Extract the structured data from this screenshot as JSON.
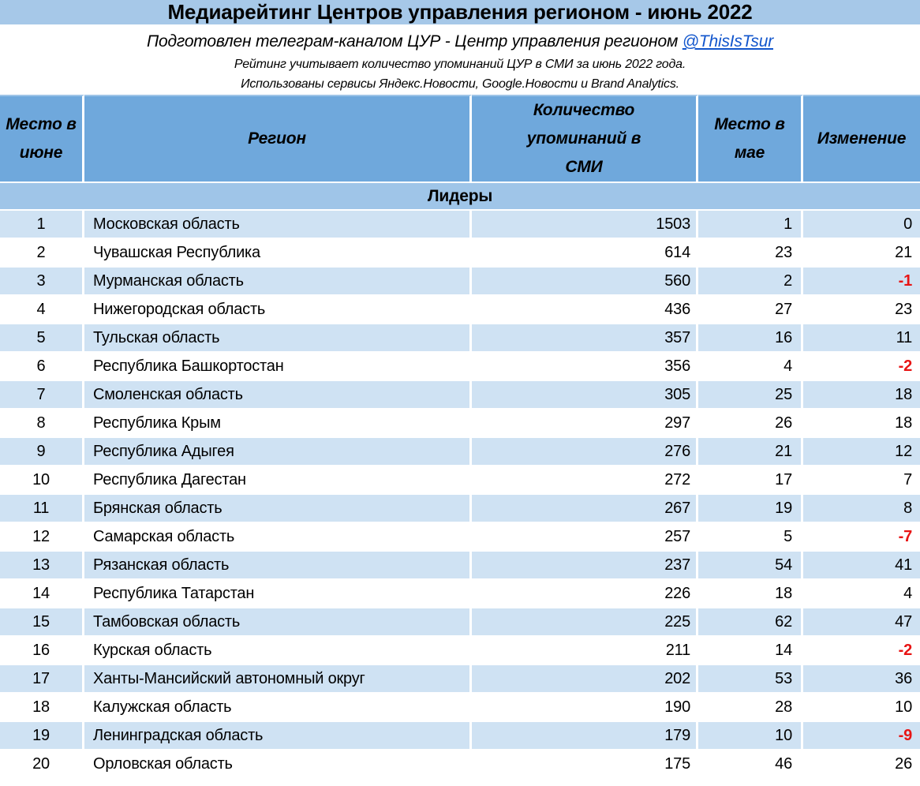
{
  "title": "Медиарейтинг Центров управления регионом - июнь 2022",
  "intro": {
    "prepared_by_prefix": "Подготовлен телеграм-каналом ЦУР - Центр управления регионом ",
    "prepared_by_link": "@ThisIsTsur",
    "note1": "Рейтинг учитывает количество упоминаний ЦУР в СМИ за июнь 2022 года.",
    "note2": "Использованы сервисы Яндекс.Новости, Google.Новости и Brand Analytics."
  },
  "colors": {
    "title_band": "#a6c8e8",
    "header_bg": "#6fa8dc",
    "section_bg": "#9fc5e8",
    "row_alt_bg": "#cfe2f3",
    "negative_red": "#e81414",
    "link_blue": "#1155cc"
  },
  "table": {
    "headers": [
      "Место в июне",
      "Регион",
      "Количество упоминаний в СМИ",
      "Место в мае",
      "Изменение"
    ],
    "section_label": "Лидеры",
    "rows": [
      {
        "place": "1",
        "region": "Московская область",
        "mentions": "1503",
        "may": "1",
        "change": "0"
      },
      {
        "place": "2",
        "region": "Чувашская Республика",
        "mentions": "614",
        "may": "23",
        "change": "21"
      },
      {
        "place": "3",
        "region": "Мурманская область",
        "mentions": "560",
        "may": "2",
        "change": "-1"
      },
      {
        "place": "4",
        "region": "Нижегородская область",
        "mentions": "436",
        "may": "27",
        "change": "23"
      },
      {
        "place": "5",
        "region": "Тульская область",
        "mentions": "357",
        "may": "16",
        "change": "11"
      },
      {
        "place": "6",
        "region": "Республика Башкортостан",
        "mentions": "356",
        "may": "4",
        "change": "-2"
      },
      {
        "place": "7",
        "region": "Смоленская область",
        "mentions": "305",
        "may": "25",
        "change": "18"
      },
      {
        "place": "8",
        "region": "Республика Крым",
        "mentions": "297",
        "may": "26",
        "change": "18"
      },
      {
        "place": "9",
        "region": "Республика Адыгея",
        "mentions": "276",
        "may": "21",
        "change": "12"
      },
      {
        "place": "10",
        "region": "Республика Дагестан",
        "mentions": "272",
        "may": "17",
        "change": "7"
      },
      {
        "place": "11",
        "region": "Брянская область",
        "mentions": "267",
        "may": "19",
        "change": "8"
      },
      {
        "place": "12",
        "region": "Самарская область",
        "mentions": "257",
        "may": "5",
        "change": "-7"
      },
      {
        "place": "13",
        "region": "Рязанская область",
        "mentions": "237",
        "may": "54",
        "change": "41"
      },
      {
        "place": "14",
        "region": "Республика Татарстан",
        "mentions": "226",
        "may": "18",
        "change": "4"
      },
      {
        "place": "15",
        "region": "Тамбовская область",
        "mentions": "225",
        "may": "62",
        "change": "47"
      },
      {
        "place": "16",
        "region": "Курская область",
        "mentions": "211",
        "may": "14",
        "change": "-2"
      },
      {
        "place": "17",
        "region": "Ханты-Мансийский автономный округ",
        "mentions": "202",
        "may": "53",
        "change": "36"
      },
      {
        "place": "18",
        "region": "Калужская область",
        "mentions": "190",
        "may": "28",
        "change": "10"
      },
      {
        "place": "19",
        "region": "Ленинградская область",
        "mentions": "179",
        "may": "10",
        "change": "-9"
      },
      {
        "place": "20",
        "region": "Орловская область",
        "mentions": "175",
        "may": "46",
        "change": "26"
      }
    ]
  }
}
